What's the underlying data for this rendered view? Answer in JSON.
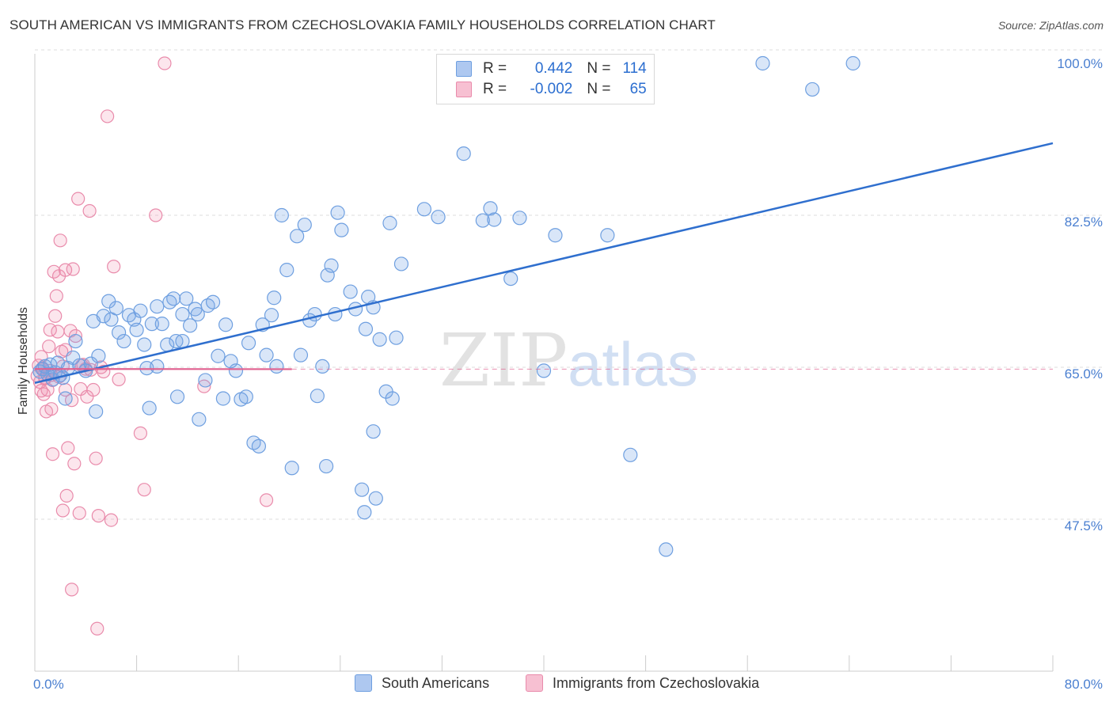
{
  "title": "SOUTH AMERICAN VS IMMIGRANTS FROM CZECHOSLOVAKIA FAMILY HOUSEHOLDS CORRELATION CHART",
  "source": "Source: ZipAtlas.com",
  "watermark": {
    "zip": "ZIP",
    "atlas": "atlas"
  },
  "legend": {
    "rows": [
      {
        "r_label": "R = ",
        "r_value": "0.442",
        "n_label": "N = ",
        "n_value": "114",
        "color": "#aec8f0",
        "border": "#6e9fe0"
      },
      {
        "r_label": "R = ",
        "r_value": "-0.002",
        "n_label": "N = ",
        "n_value": "65",
        "color": "#f7c0d2",
        "border": "#e98bab"
      }
    ]
  },
  "bottom_legend": [
    {
      "label": "South Americans",
      "color": "#aec8f0",
      "border": "#6e9fe0"
    },
    {
      "label": "Immigrants from Czechoslovakia",
      "color": "#f7c0d2",
      "border": "#e98bab"
    }
  ],
  "colors": {
    "blue_fill": "rgba(120,165,230,0.28)",
    "blue_stroke": "#6e9fe0",
    "blue_line": "#2f6fce",
    "pink_fill": "rgba(240,140,175,0.22)",
    "pink_stroke": "#e98bab",
    "pink_line": "#e0608f",
    "grid": "#dddddd"
  },
  "chart_data": {
    "type": "scatter",
    "title": "SOUTH AMERICAN VS IMMIGRANTS FROM CZECHOSLOVAKIA FAMILY HOUSEHOLDS CORRELATION CHART",
    "xlabel": "",
    "ylabel": "Family Households",
    "xlim": [
      0,
      80
    ],
    "ylim": [
      30,
      100
    ],
    "x_tick_labels": [
      "0.0%",
      "80.0%"
    ],
    "y_ticks": [
      47.5,
      65.0,
      82.5,
      100.0
    ],
    "y_tick_labels": [
      "47.5%",
      "65.0%",
      "82.5%",
      "100.0%"
    ],
    "grid": true,
    "legend_position": "top-center",
    "series": [
      {
        "name": "South Americans",
        "R": 0.442,
        "N": 114,
        "trend": {
          "x": [
            0,
            80
          ],
          "y": [
            63.2,
            90.8
          ]
        },
        "points": [
          [
            0.4,
            64.5
          ],
          [
            0.6,
            64.8
          ],
          [
            0.8,
            65.1
          ],
          [
            1.0,
            64.2
          ],
          [
            1.2,
            65.3
          ],
          [
            1.4,
            63.6
          ],
          [
            1.6,
            64.4
          ],
          [
            1.8,
            65.5
          ],
          [
            2.0,
            64.1
          ],
          [
            2.2,
            63.8
          ],
          [
            2.4,
            61.4
          ],
          [
            2.6,
            64.9
          ],
          [
            3.0,
            66.1
          ],
          [
            3.2,
            68.0
          ],
          [
            3.5,
            65.2
          ],
          [
            4.0,
            64.6
          ],
          [
            4.4,
            65.4
          ],
          [
            4.6,
            70.3
          ],
          [
            4.8,
            59.9
          ],
          [
            5.0,
            66.3
          ],
          [
            5.4,
            70.9
          ],
          [
            5.8,
            72.6
          ],
          [
            6.0,
            70.5
          ],
          [
            6.4,
            71.8
          ],
          [
            6.6,
            69.0
          ],
          [
            7.0,
            68.0
          ],
          [
            7.4,
            71.0
          ],
          [
            7.8,
            70.5
          ],
          [
            8.0,
            69.3
          ],
          [
            8.3,
            71.5
          ],
          [
            8.6,
            67.6
          ],
          [
            8.8,
            64.9
          ],
          [
            9.0,
            60.3
          ],
          [
            9.2,
            70.0
          ],
          [
            9.6,
            72.0
          ],
          [
            10.0,
            70.0
          ],
          [
            10.4,
            67.6
          ],
          [
            10.6,
            72.5
          ],
          [
            10.9,
            72.9
          ],
          [
            11.1,
            68.0
          ],
          [
            11.2,
            61.6
          ],
          [
            11.6,
            71.1
          ],
          [
            11.9,
            72.9
          ],
          [
            12.2,
            69.8
          ],
          [
            12.6,
            71.7
          ],
          [
            12.8,
            71.1
          ],
          [
            12.9,
            59.0
          ],
          [
            13.4,
            63.5
          ],
          [
            13.6,
            72.1
          ],
          [
            14.0,
            72.5
          ],
          [
            14.4,
            66.3
          ],
          [
            14.8,
            61.4
          ],
          [
            15.0,
            69.9
          ],
          [
            15.4,
            65.7
          ],
          [
            15.8,
            64.6
          ],
          [
            16.2,
            61.3
          ],
          [
            16.6,
            61.6
          ],
          [
            16.8,
            67.8
          ],
          [
            17.2,
            56.3
          ],
          [
            17.6,
            55.9
          ],
          [
            17.9,
            69.9
          ],
          [
            18.2,
            66.4
          ],
          [
            18.6,
            71.0
          ],
          [
            18.8,
            73.0
          ],
          [
            19.0,
            65.1
          ],
          [
            19.4,
            82.5
          ],
          [
            19.8,
            76.2
          ],
          [
            20.2,
            53.4
          ],
          [
            20.6,
            80.1
          ],
          [
            20.9,
            66.4
          ],
          [
            21.2,
            81.4
          ],
          [
            21.6,
            70.4
          ],
          [
            22.0,
            71.1
          ],
          [
            22.2,
            61.7
          ],
          [
            22.6,
            65.1
          ],
          [
            23.0,
            75.6
          ],
          [
            23.3,
            76.7
          ],
          [
            23.6,
            71.1
          ],
          [
            23.8,
            82.8
          ],
          [
            24.1,
            80.8
          ],
          [
            24.8,
            73.7
          ],
          [
            25.2,
            71.7
          ],
          [
            25.7,
            50.9
          ],
          [
            25.9,
            48.3
          ],
          [
            26.2,
            73.1
          ],
          [
            26.6,
            71.9
          ],
          [
            26.6,
            57.6
          ],
          [
            27.1,
            68.2
          ],
          [
            27.6,
            62.2
          ],
          [
            27.9,
            81.6
          ],
          [
            28.1,
            61.4
          ],
          [
            28.4,
            68.4
          ],
          [
            28.8,
            76.9
          ],
          [
            30.6,
            83.2
          ],
          [
            31.7,
            82.3
          ],
          [
            33.7,
            89.6
          ],
          [
            35.2,
            81.9
          ],
          [
            35.8,
            83.3
          ],
          [
            36.1,
            82.0
          ],
          [
            37.4,
            75.2
          ],
          [
            38.1,
            82.2
          ],
          [
            40.0,
            64.6
          ],
          [
            40.9,
            80.2
          ],
          [
            45.0,
            80.2
          ],
          [
            46.8,
            54.9
          ],
          [
            49.6,
            44.0
          ],
          [
            57.2,
            100.0
          ],
          [
            61.1,
            97.0
          ],
          [
            64.3,
            100.0
          ],
          [
            26.8,
            49.9
          ],
          [
            22.9,
            53.6
          ],
          [
            26.0,
            69.4
          ],
          [
            11.6,
            68.0
          ],
          [
            9.6,
            65.1
          ]
        ]
      },
      {
        "name": "Immigrants from Czechoslovakia",
        "R": -0.002,
        "N": 65,
        "trend": {
          "x": [
            0,
            20.2
          ],
          "y": [
            64.8,
            64.78
          ]
        },
        "points": [
          [
            0.2,
            64.0
          ],
          [
            0.3,
            65.2
          ],
          [
            0.4,
            63.3
          ],
          [
            0.5,
            62.3
          ],
          [
            0.5,
            66.2
          ],
          [
            0.6,
            64.8
          ],
          [
            0.7,
            61.9
          ],
          [
            0.8,
            63.8
          ],
          [
            0.9,
            59.9
          ],
          [
            1.0,
            62.4
          ],
          [
            1.1,
            67.4
          ],
          [
            1.2,
            69.3
          ],
          [
            1.2,
            64.6
          ],
          [
            1.3,
            60.2
          ],
          [
            1.4,
            63.5
          ],
          [
            1.4,
            55.0
          ],
          [
            1.5,
            76.0
          ],
          [
            1.6,
            70.9
          ],
          [
            1.7,
            73.2
          ],
          [
            1.8,
            69.1
          ],
          [
            1.9,
            75.5
          ],
          [
            2.0,
            79.6
          ],
          [
            2.1,
            66.8
          ],
          [
            2.2,
            48.5
          ],
          [
            2.4,
            76.2
          ],
          [
            2.4,
            67.0
          ],
          [
            2.4,
            62.4
          ],
          [
            2.5,
            50.2
          ],
          [
            2.6,
            55.7
          ],
          [
            2.8,
            69.2
          ],
          [
            2.9,
            61.2
          ],
          [
            2.9,
            39.4
          ],
          [
            3.0,
            76.3
          ],
          [
            3.1,
            53.9
          ],
          [
            3.2,
            68.6
          ],
          [
            3.4,
            84.4
          ],
          [
            3.5,
            48.2
          ],
          [
            3.6,
            62.5
          ],
          [
            3.8,
            65.3
          ],
          [
            4.0,
            64.8
          ],
          [
            4.1,
            61.6
          ],
          [
            4.3,
            83.0
          ],
          [
            4.6,
            62.4
          ],
          [
            4.8,
            54.5
          ],
          [
            4.9,
            34.9
          ],
          [
            5.0,
            47.9
          ],
          [
            5.4,
            64.5
          ],
          [
            5.7,
            93.9
          ],
          [
            6.0,
            47.4
          ],
          [
            6.2,
            76.6
          ],
          [
            6.6,
            63.6
          ],
          [
            8.3,
            57.4
          ],
          [
            8.6,
            50.9
          ],
          [
            9.5,
            82.5
          ],
          [
            10.2,
            100.0
          ],
          [
            13.3,
            62.8
          ],
          [
            18.2,
            49.7
          ],
          [
            1.3,
            64.1
          ],
          [
            0.8,
            63.7
          ],
          [
            2.2,
            65.1
          ],
          [
            3.7,
            65.2
          ],
          [
            1.9,
            63.9
          ],
          [
            5.2,
            65.0
          ],
          [
            0.6,
            64.9
          ],
          [
            4.4,
            64.7
          ]
        ]
      }
    ]
  }
}
